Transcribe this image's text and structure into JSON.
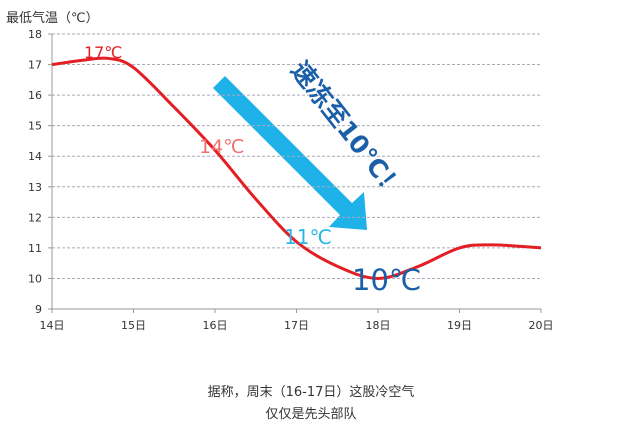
{
  "chart_data": {
    "type": "line",
    "y_axis_title": "最低气温（℃）",
    "x": [
      14,
      14.4,
      14.7,
      15,
      15.5,
      16,
      16.5,
      17,
      17.5,
      18,
      18.5,
      19,
      19.4,
      20
    ],
    "values": [
      17.0,
      17.15,
      17.2,
      16.9,
      15.6,
      14.2,
      12.6,
      11.2,
      10.4,
      10.0,
      10.4,
      11.0,
      11.1,
      11.0
    ],
    "color": "#e31e24",
    "xlim": [
      14,
      20
    ],
    "xticks": [
      {
        "value": 14,
        "label": "14日"
      },
      {
        "value": 15,
        "label": "15日"
      },
      {
        "value": 16,
        "label": "16日"
      },
      {
        "value": 17,
        "label": "17日"
      },
      {
        "value": 18,
        "label": "18日"
      },
      {
        "value": 19,
        "label": "19日"
      },
      {
        "value": 20,
        "label": "20日"
      }
    ],
    "ylim": [
      9,
      18
    ],
    "yticks": [
      9,
      10,
      11,
      12,
      13,
      14,
      15,
      16,
      17,
      18
    ],
    "grid": true,
    "annotations": [
      "17℃",
      "14℃",
      "11℃",
      "10℃",
      "速冻至10℃！"
    ],
    "caption": [
      "据称，周末（16-17日）这股冷空气",
      "仅仅是先头部队"
    ]
  }
}
